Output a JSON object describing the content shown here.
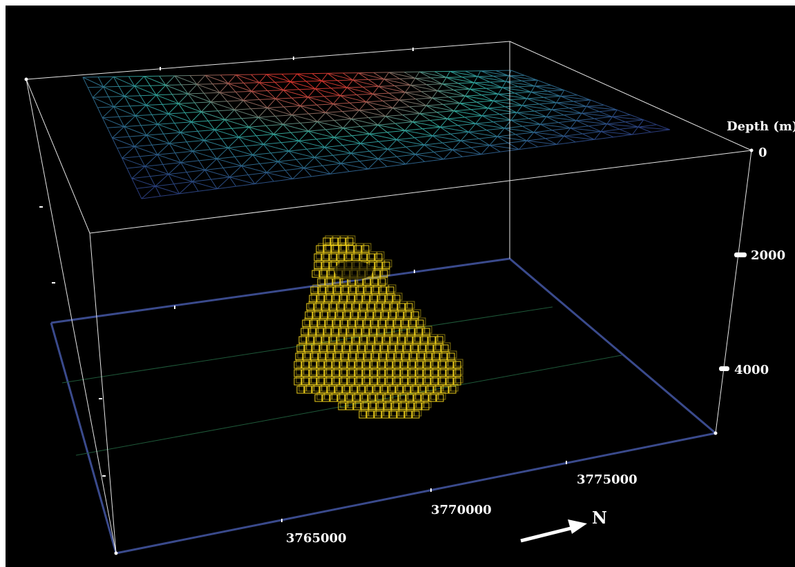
{
  "depth_axis": {
    "title": "Depth (m)",
    "ticks": [
      "0",
      "2000",
      "4000"
    ]
  },
  "northing_axis": {
    "ticks": [
      "3765000",
      "3770000",
      "3775000"
    ]
  },
  "north_arrow": {
    "label": "N"
  },
  "colors": {
    "background": "#000000",
    "frame": "#ffffff",
    "base_edge": "#3a4a8c",
    "body_wireframe": "#f2d21a",
    "surface_low": "#2a2f7a",
    "surface_mid": "#2fa89a",
    "surface_high": "#d8322a"
  }
}
